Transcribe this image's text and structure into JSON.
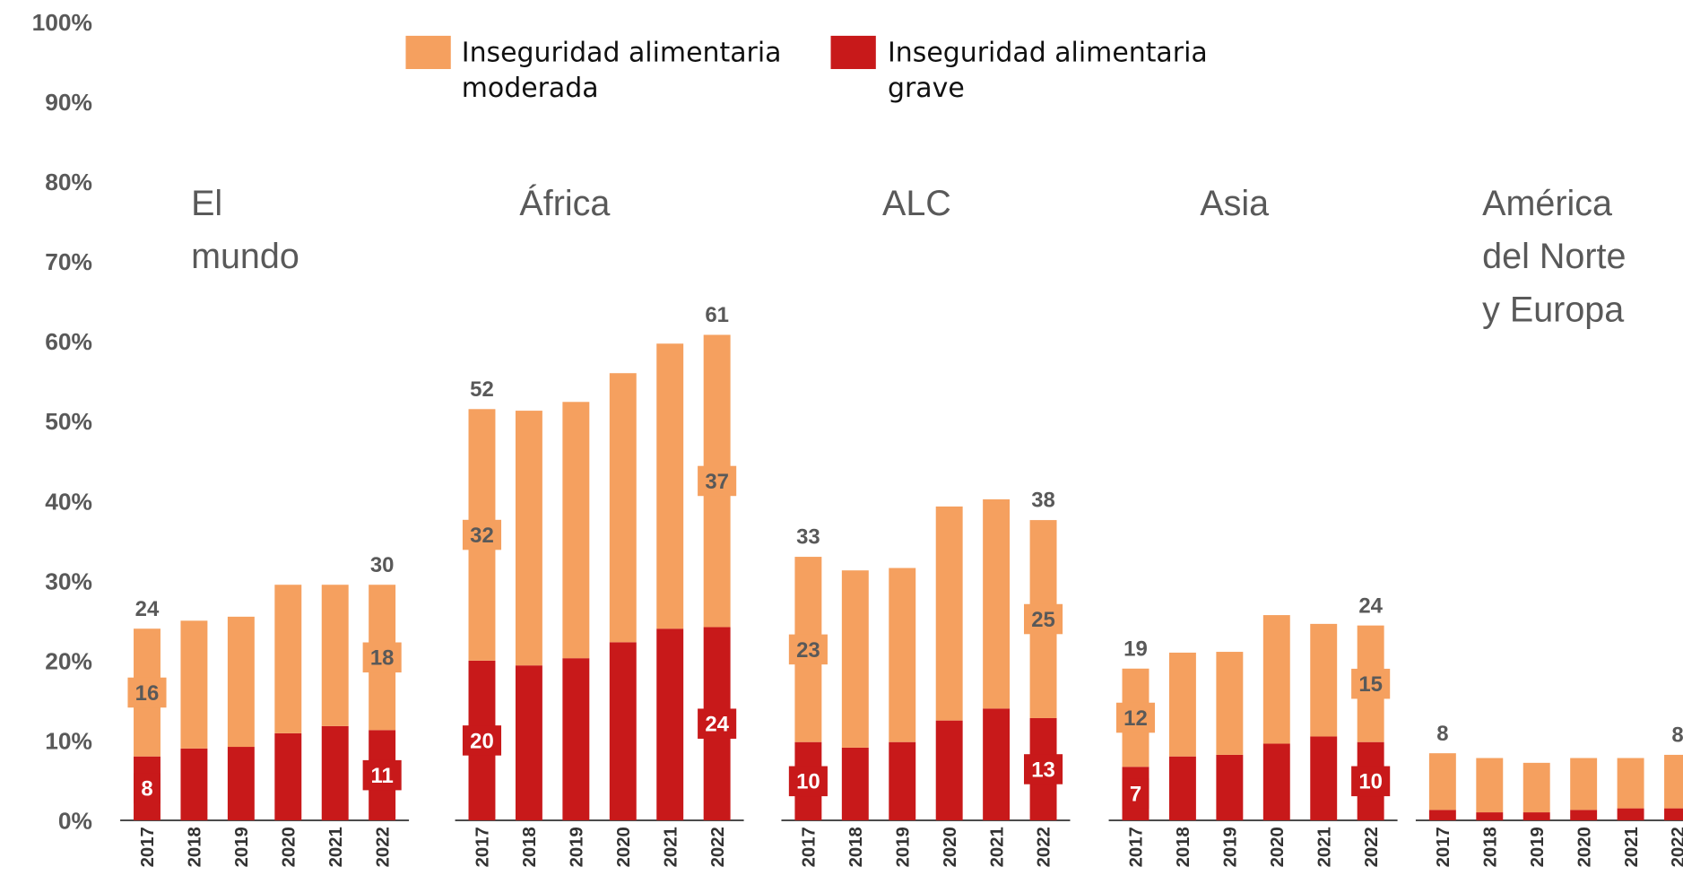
{
  "chart_data": {
    "type": "bar",
    "stacked": true,
    "ylim": [
      0,
      100
    ],
    "yticks": [
      {
        "value": 0,
        "label": "0%"
      },
      {
        "value": 10,
        "label": "10%"
      },
      {
        "value": 20,
        "label": "20%"
      },
      {
        "value": 30,
        "label": "30%"
      },
      {
        "value": 40,
        "label": "40%"
      },
      {
        "value": 50,
        "label": "50%"
      },
      {
        "value": 60,
        "label": "60%"
      },
      {
        "value": 70,
        "label": "70%"
      },
      {
        "value": 80,
        "label": "80%"
      },
      {
        "value": 90,
        "label": "90%"
      },
      {
        "value": 100,
        "label": "100%"
      }
    ],
    "grid": false,
    "series": [
      {
        "name": "Inseguridad alimentaria grave",
        "color": "#c8191a"
      },
      {
        "name": "Inseguridad alimentaria moderada",
        "color": "#f5a05f"
      }
    ],
    "panels": [
      {
        "title": [
          "El",
          "mundo"
        ],
        "categories": [
          "2017",
          "2018",
          "2019",
          "2020",
          "2021",
          "2022"
        ],
        "values": [
          [
            8,
            9,
            9.2,
            10.9,
            11.8,
            11.3
          ],
          [
            16,
            16,
            16.3,
            18.6,
            17.7,
            18.2
          ]
        ],
        "value_labels": [
          [
            "8",
            null,
            null,
            null,
            null,
            "11"
          ],
          [
            "16",
            null,
            null,
            null,
            null,
            "18"
          ]
        ],
        "totals": [
          24,
          null,
          null,
          null,
          null,
          30
        ]
      },
      {
        "title": [
          "África"
        ],
        "categories": [
          "2017",
          "2018",
          "2019",
          "2020",
          "2021",
          "2022"
        ],
        "values": [
          [
            20,
            19.4,
            20.3,
            22.3,
            24,
            24.2
          ],
          [
            31.5,
            31.9,
            32.1,
            33.7,
            35.7,
            36.6
          ]
        ],
        "value_labels": [
          [
            "20",
            null,
            null,
            null,
            null,
            "24"
          ],
          [
            "32",
            null,
            null,
            null,
            null,
            "37"
          ]
        ],
        "totals": [
          52,
          null,
          null,
          null,
          null,
          61
        ]
      },
      {
        "title": [
          "ALC"
        ],
        "categories": [
          "2017",
          "2018",
          "2019",
          "2020",
          "2021",
          "2022"
        ],
        "values": [
          [
            9.8,
            9.1,
            9.8,
            12.5,
            14,
            12.8
          ],
          [
            23.2,
            22.2,
            21.8,
            26.8,
            26.2,
            24.8
          ]
        ],
        "value_labels": [
          [
            "10",
            null,
            null,
            null,
            null,
            "13"
          ],
          [
            "23",
            null,
            null,
            null,
            null,
            "25"
          ]
        ],
        "totals": [
          33,
          null,
          null,
          null,
          null,
          38
        ]
      },
      {
        "title": [
          "Asia"
        ],
        "categories": [
          "2017",
          "2018",
          "2019",
          "2020",
          "2021",
          "2022"
        ],
        "values": [
          [
            6.7,
            8,
            8.2,
            9.6,
            10.5,
            9.8
          ],
          [
            12.3,
            13,
            12.9,
            16.1,
            14.1,
            14.6
          ]
        ],
        "value_labels": [
          [
            "7",
            null,
            null,
            null,
            null,
            "10"
          ],
          [
            "12",
            null,
            null,
            null,
            null,
            "15"
          ]
        ],
        "totals": [
          19,
          null,
          null,
          null,
          null,
          24
        ]
      },
      {
        "title": [
          "América",
          "del Norte",
          "y Europa"
        ],
        "categories": [
          "2017",
          "2018",
          "2019",
          "2020",
          "2021",
          "2022"
        ],
        "values": [
          [
            1.3,
            1,
            1,
            1.3,
            1.5,
            1.5
          ],
          [
            7.1,
            6.8,
            6.2,
            6.5,
            6.3,
            6.7
          ]
        ],
        "value_labels": [
          [
            null,
            null,
            null,
            null,
            null,
            null
          ],
          [
            null,
            null,
            null,
            null,
            null,
            null
          ]
        ],
        "totals": [
          8,
          null,
          null,
          null,
          null,
          8
        ]
      }
    ]
  }
}
